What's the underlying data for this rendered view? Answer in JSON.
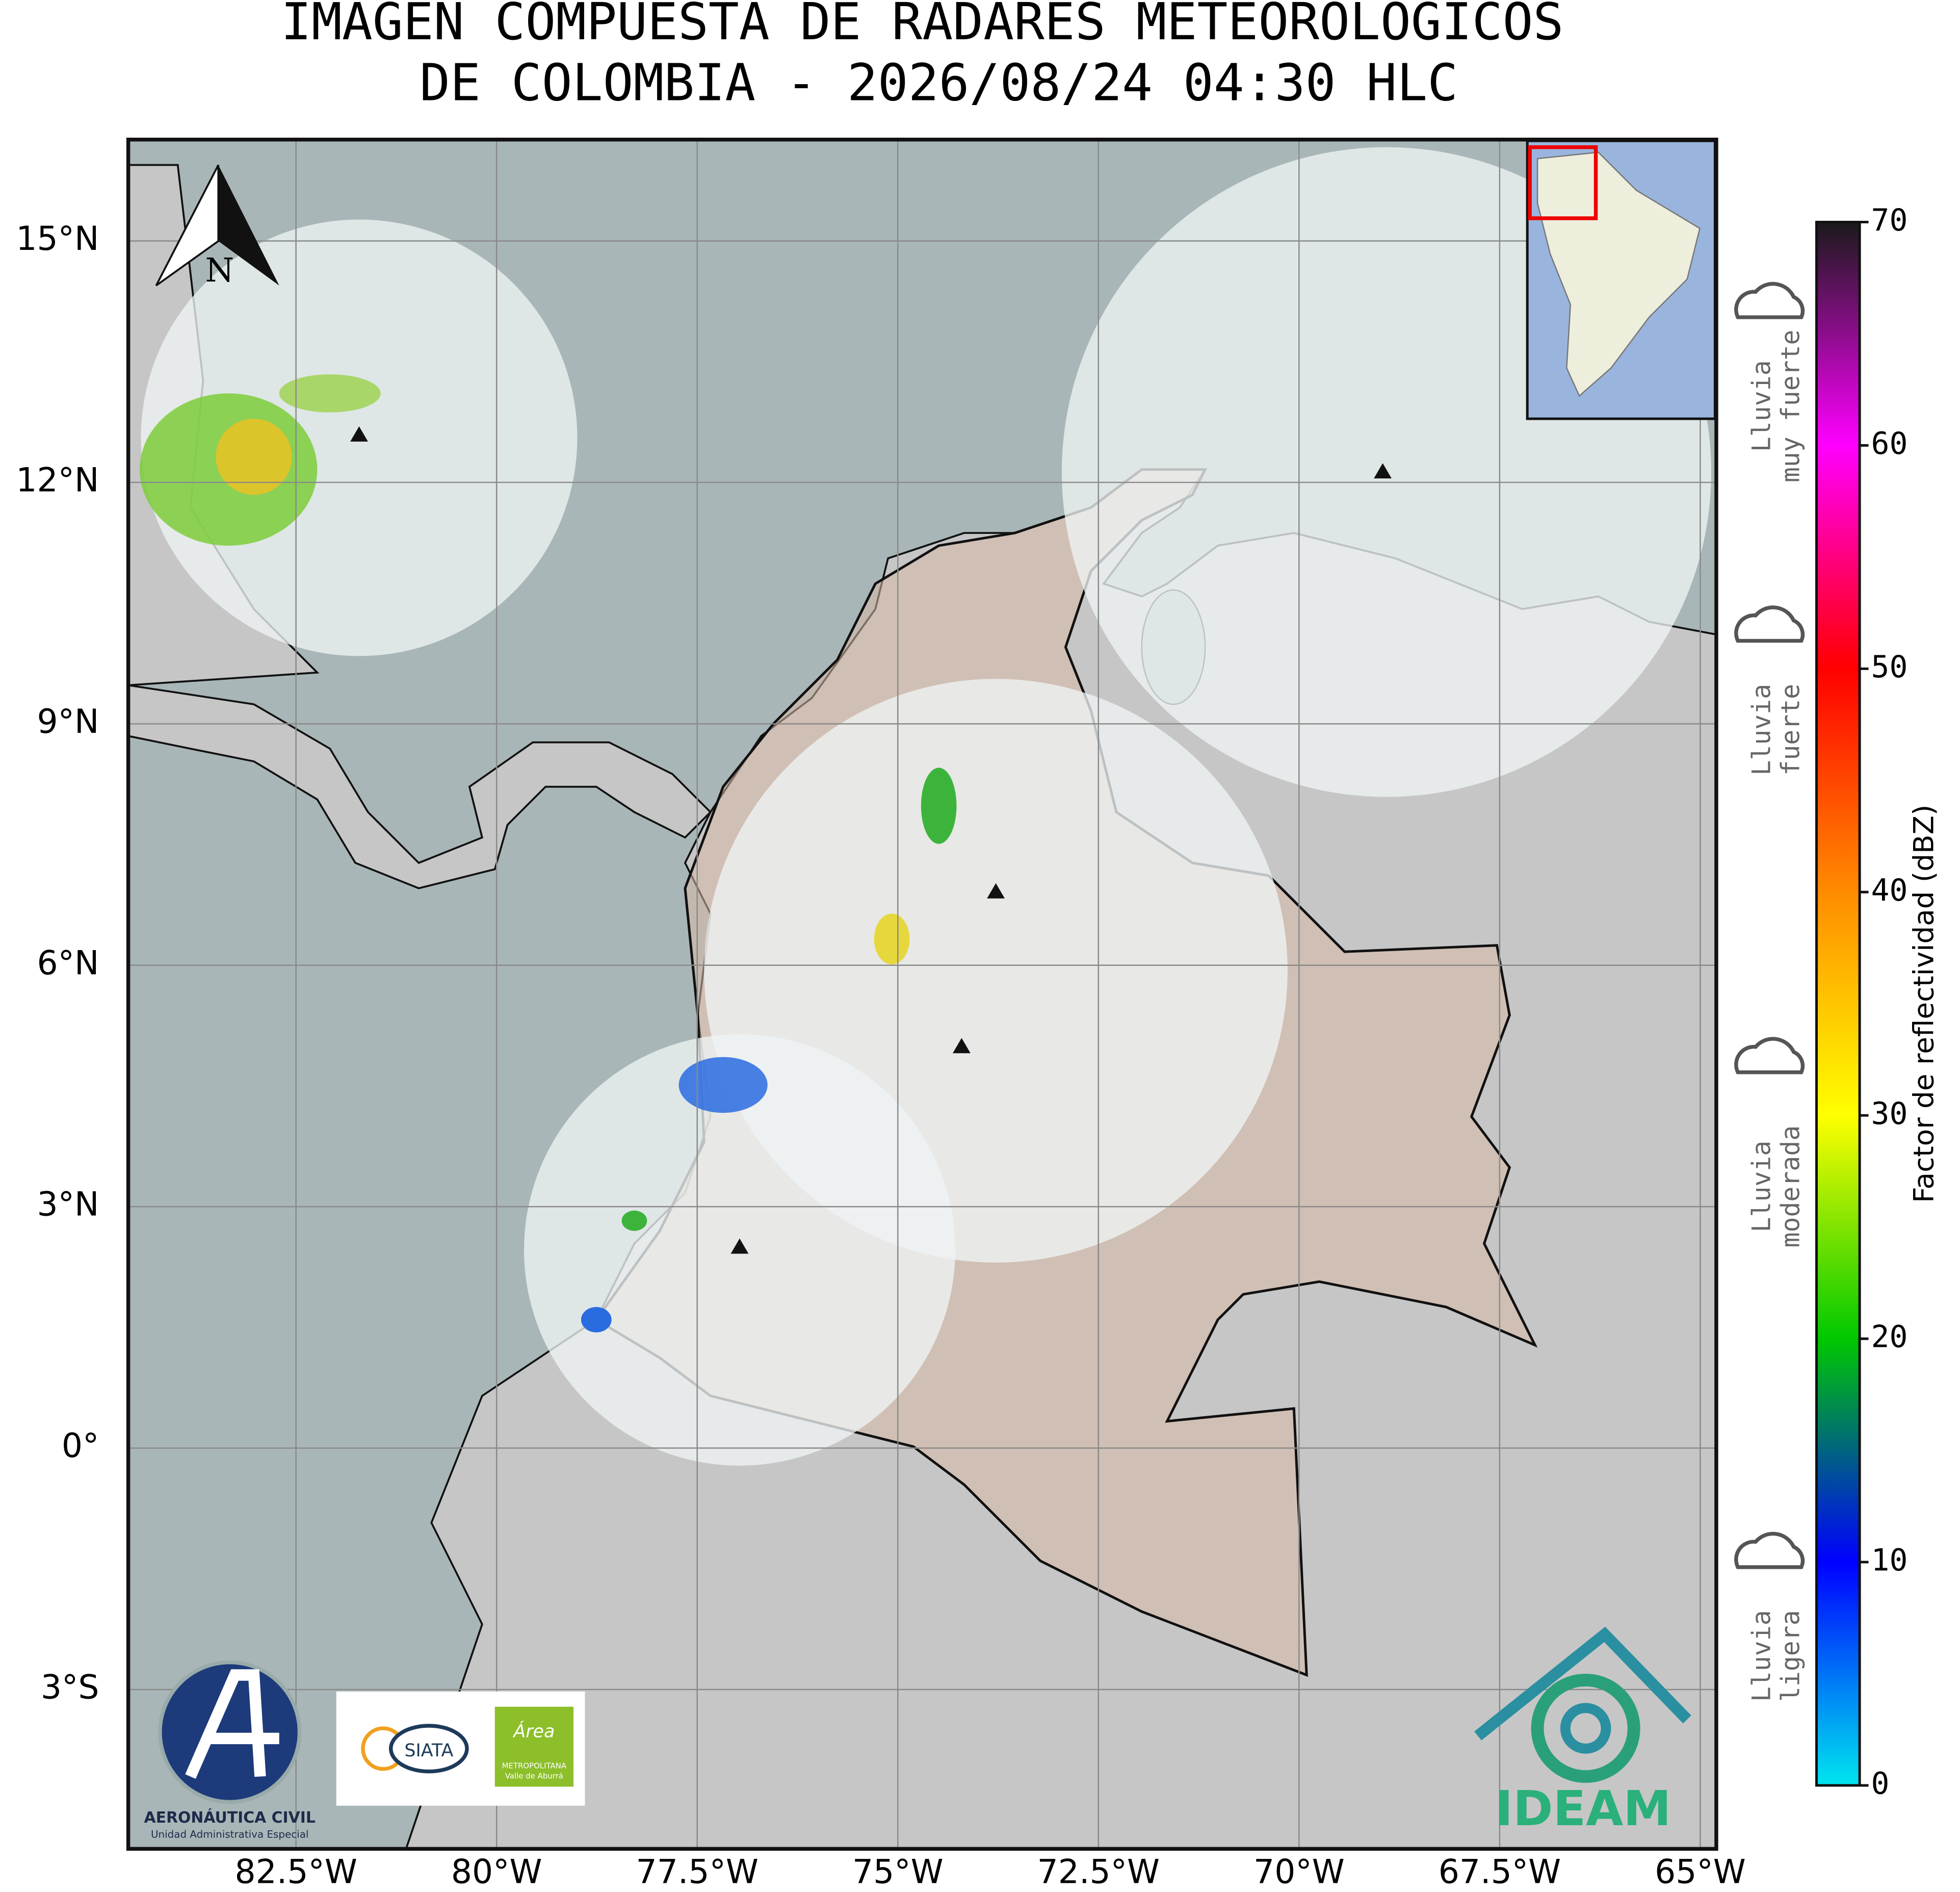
{
  "title": [
    "IMAGEN COMPUESTA DE RADARES METEOROLOGICOS",
    "DE COLOMBIA - 2026/08/24 04:30 HLC"
  ],
  "map": {
    "xlim": [
      -84.59,
      -64.8
    ],
    "ylim": [
      -4.98,
      16.26
    ],
    "xticks": [
      {
        "value": -82.5,
        "label": "82.5°W"
      },
      {
        "value": -80,
        "label": "80°W"
      },
      {
        "value": -77.5,
        "label": "77.5°W"
      },
      {
        "value": -75,
        "label": "75°W"
      },
      {
        "value": -72.5,
        "label": "72.5°W"
      },
      {
        "value": -70,
        "label": "70°W"
      },
      {
        "value": -67.5,
        "label": "67.5°W"
      },
      {
        "value": -65,
        "label": "65°W"
      }
    ],
    "yticks": [
      {
        "value": 15,
        "label": "15°N"
      },
      {
        "value": 12,
        "label": "12°N"
      },
      {
        "value": 9,
        "label": "9°N"
      },
      {
        "value": 6,
        "label": "6°N"
      },
      {
        "value": 3,
        "label": "3°N"
      },
      {
        "value": 0,
        "label": "0°"
      },
      {
        "value": -3,
        "label": "3°S"
      }
    ],
    "north_label": "N"
  },
  "colorbar": {
    "label": "Factor de reflectividad (dBZ)",
    "lim": [
      0,
      70
    ],
    "ticks": [
      0,
      10,
      20,
      30,
      40,
      50,
      60,
      70
    ],
    "colors": [
      "#00e5ee",
      "#0000ff",
      "#00c800",
      "#ffff00",
      "#ff8c00",
      "#ff0000",
      "#ff00ff",
      "#1a1a1a"
    ]
  },
  "rain_levels": [
    [
      "Lluvia",
      "ligera"
    ],
    [
      "Lluvia",
      "moderada"
    ],
    [
      "Lluvia",
      "fuerte"
    ],
    [
      "Lluvia",
      "muy fuerte"
    ]
  ],
  "logos": {
    "aerocivil": [
      "AERONÁUTICA CIVIL",
      "Unidad Administrativa Especial"
    ],
    "siata": "SIATA",
    "area": [
      "Área",
      "METROPOLITANA",
      "Valle de Aburrá"
    ],
    "ideam": "IDEAM"
  }
}
